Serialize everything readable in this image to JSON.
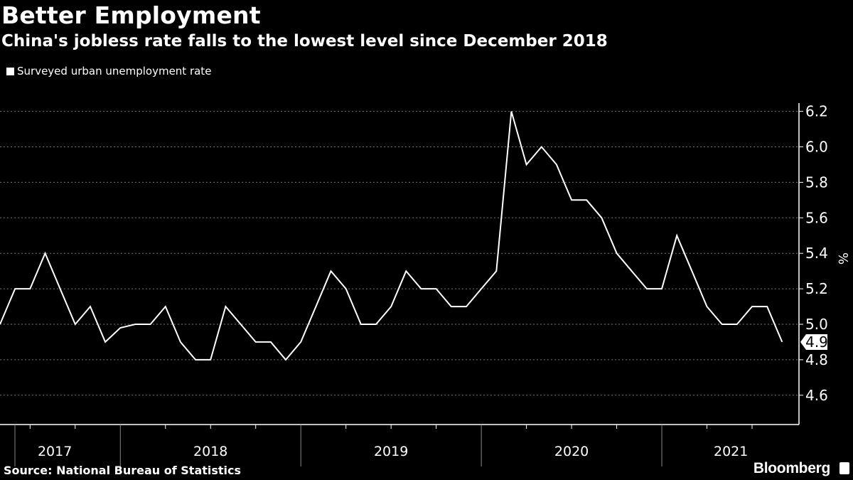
{
  "title": "Better Employment",
  "subtitle": "China's jobless rate falls to the lowest level since December 2018",
  "source": "Source: National Bureau of Statistics",
  "brand": "Bloomberg",
  "colors": {
    "background": "#000000",
    "line": "#ffffff",
    "grid": "#777777"
  },
  "chart_data": {
    "type": "line",
    "legend": [
      "Surveyed urban unemployment rate"
    ],
    "legend_position": "top-left",
    "ylabel": "%",
    "ylim": [
      4.5,
      6.3
    ],
    "yticks": [
      "4.6",
      "4.8",
      "5.0",
      "5.2",
      "5.4",
      "5.6",
      "5.8",
      "6.0",
      "6.2"
    ],
    "xticks": [
      "2017",
      "2018",
      "2019",
      "2020",
      "2021"
    ],
    "grid": true,
    "last_value_label": "4.9",
    "series": [
      {
        "name": "Surveyed urban unemployment rate",
        "x": [
          "2017-05",
          "2017-06",
          "2017-07",
          "2017-08",
          "2017-09",
          "2017-10",
          "2017-11",
          "2017-12",
          "2018-01",
          "2018-02",
          "2018-03",
          "2018-04",
          "2018-05",
          "2018-06",
          "2018-07",
          "2018-08",
          "2018-09",
          "2018-10",
          "2018-11",
          "2018-12",
          "2019-01",
          "2019-02",
          "2019-03",
          "2019-04",
          "2019-05",
          "2019-06",
          "2019-07",
          "2019-08",
          "2019-09",
          "2019-10",
          "2019-11",
          "2019-12",
          "2020-01",
          "2020-02",
          "2020-03",
          "2020-04",
          "2020-05",
          "2020-06",
          "2020-07",
          "2020-08",
          "2020-09",
          "2020-10",
          "2020-11",
          "2020-12",
          "2021-01",
          "2021-02",
          "2021-03",
          "2021-04",
          "2021-05",
          "2021-06",
          "2021-07",
          "2021-08",
          "2021-09"
        ],
        "values": [
          5.0,
          5.2,
          5.2,
          5.4,
          5.2,
          5.0,
          5.1,
          4.9,
          4.98,
          5.0,
          5.0,
          5.1,
          4.9,
          4.8,
          4.8,
          5.1,
          5.0,
          4.9,
          4.9,
          4.8,
          4.9,
          5.1,
          5.3,
          5.2,
          5.0,
          5.0,
          5.1,
          5.3,
          5.2,
          5.2,
          5.1,
          5.1,
          5.2,
          5.3,
          6.2,
          5.9,
          6.0,
          5.9,
          5.7,
          5.7,
          5.6,
          5.4,
          5.3,
          5.2,
          5.2,
          5.5,
          5.3,
          5.1,
          5.0,
          5.0,
          5.1,
          5.1,
          4.9
        ]
      }
    ]
  }
}
